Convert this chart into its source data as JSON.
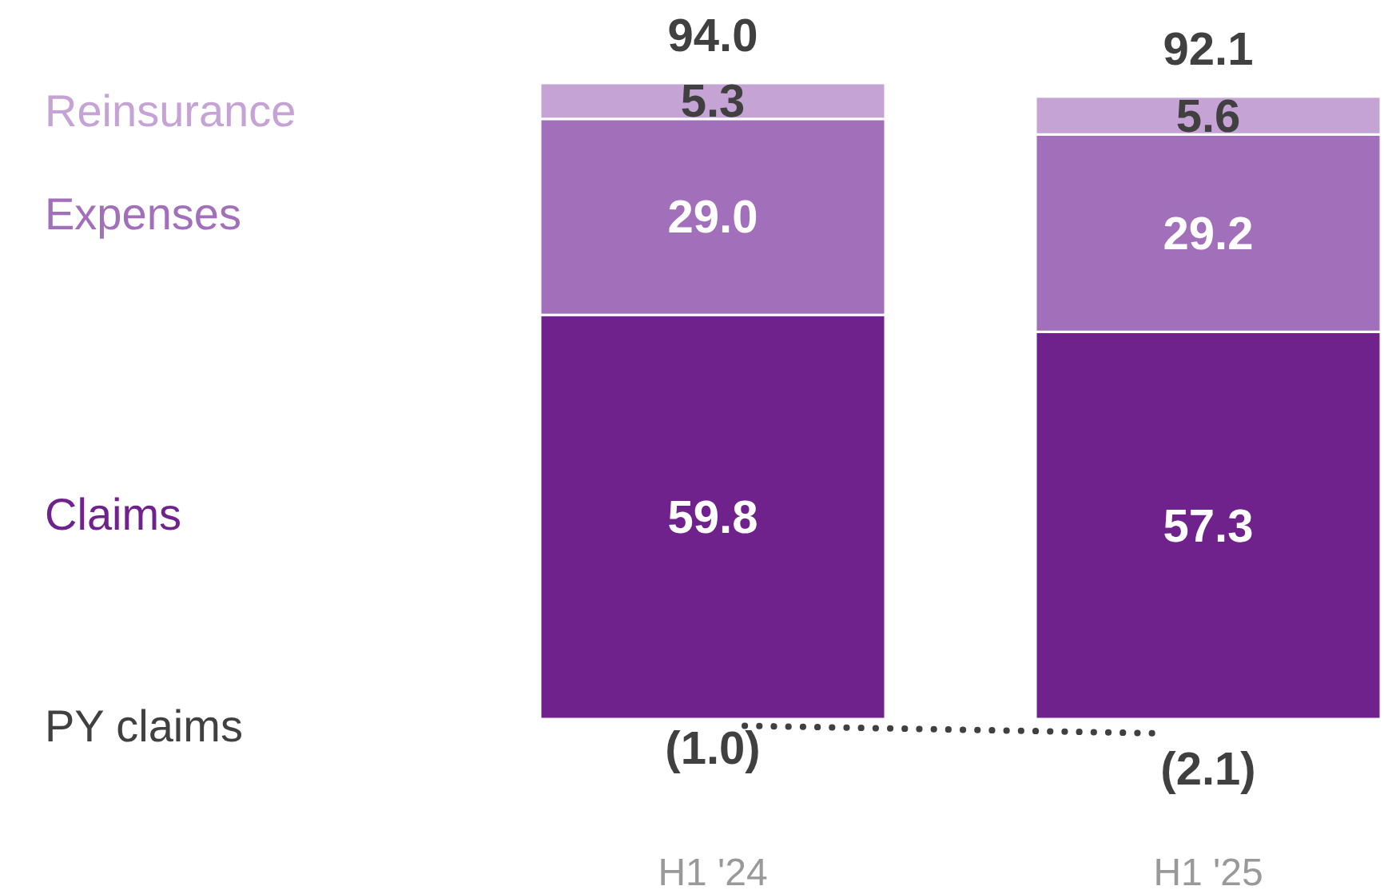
{
  "chart_data": {
    "type": "bar",
    "stacked": true,
    "categories": [
      "H1 '24",
      "H1 '25"
    ],
    "series": [
      {
        "name": "Claims",
        "color": "#6f228c",
        "values": [
          59.8,
          57.3
        ],
        "value_labels": [
          "59.8",
          "57.3"
        ]
      },
      {
        "name": "Expenses",
        "color": "#a26fba",
        "values": [
          29.0,
          29.2
        ],
        "value_labels": [
          "29.0",
          "29.2"
        ]
      },
      {
        "name": "Reinsurance",
        "color": "#c5a3d5",
        "values": [
          5.3,
          5.6
        ],
        "value_labels": [
          "5.3",
          "5.6"
        ]
      },
      {
        "name": "PY claims",
        "type": "line",
        "color": "#404040",
        "line_style": "dotted",
        "marker": "none",
        "values": [
          -1.0,
          -2.1
        ],
        "value_labels": [
          "(1.0)",
          "(2.1)"
        ]
      }
    ],
    "totals": [
      "94.0",
      "92.1"
    ],
    "legend": "left"
  }
}
